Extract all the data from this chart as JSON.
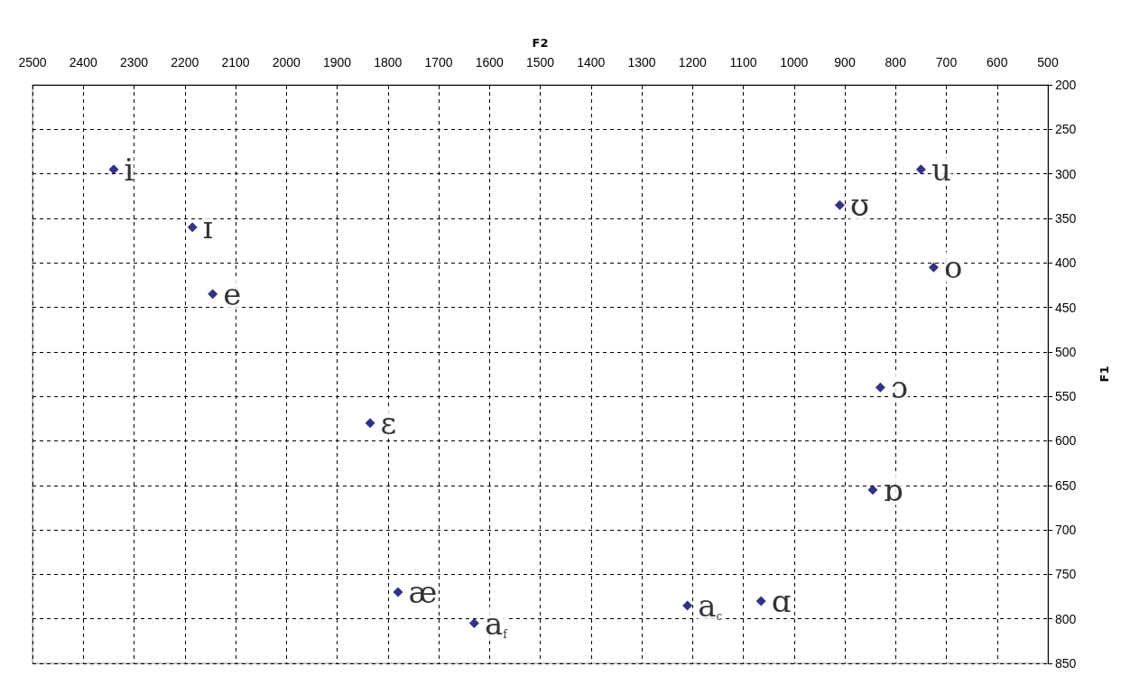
{
  "chart_data": {
    "type": "scatter",
    "xlabel": "F2",
    "ylabel": "F1",
    "xlim": [
      2500,
      500
    ],
    "ylim": [
      850,
      200
    ],
    "xticks": [
      2500,
      2400,
      2300,
      2200,
      2100,
      2000,
      1900,
      1800,
      1700,
      1600,
      1500,
      1400,
      1300,
      1200,
      1100,
      1000,
      900,
      800,
      700,
      600,
      500
    ],
    "yticks": [
      200,
      250,
      300,
      350,
      400,
      450,
      500,
      550,
      600,
      650,
      700,
      750,
      800,
      850
    ],
    "grid": true,
    "marker": "diamond",
    "series": [
      {
        "color": "#000066",
        "x": [
          2340,
          2185,
          2145,
          1835,
          1780,
          1630,
          750,
          910,
          725,
          830,
          845,
          1210,
          1065
        ],
        "values": [
          295,
          360,
          435,
          580,
          770,
          805,
          295,
          335,
          405,
          540,
          655,
          785,
          780
        ],
        "value_labels": [
          "i",
          "ɪ",
          "e",
          "ɛ",
          "æ",
          "a$_{f}$",
          "u",
          "ʊ",
          "o",
          "ɔ",
          "ɒ",
          "a$_{c}$",
          "ɑ"
        ]
      }
    ]
  }
}
